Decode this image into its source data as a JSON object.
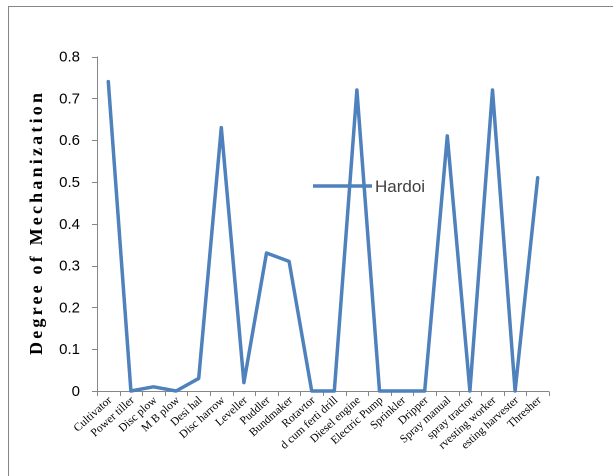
{
  "chart_data": {
    "type": "line",
    "ylabel": "Degree of Mechanization",
    "categories": [
      "Cultivator",
      "Power tiller",
      "Disc plow",
      "M B plow",
      "Desi hal",
      "Disc harrow",
      "Leveller",
      "Puddler",
      "Bundmaker",
      "Rotavtor",
      "d cum ferti drill",
      "Diesel engine",
      "Electric Pump",
      "Sprinkler",
      "Dripper",
      "Spray manual",
      "spray tractor",
      "rvesting worker",
      "esting harvester",
      "Thresher"
    ],
    "series": [
      {
        "name": "Hardoi",
        "color": "#4F81BD",
        "values": [
          0.74,
          0,
          0.01,
          0,
          0.03,
          0.63,
          0.02,
          0.33,
          0.31,
          0,
          0,
          0.72,
          0,
          0,
          0,
          0.61,
          0,
          0.72,
          0,
          0.51
        ]
      }
    ],
    "ylim": [
      0,
      0.8
    ],
    "yticks": [
      0,
      0.1,
      0.2,
      0.3,
      0.4,
      0.5,
      0.6,
      0.7,
      0.8
    ],
    "ytick_labels": [
      "0",
      "0.1",
      "0.2",
      "0.3",
      "0.4",
      "0.5",
      "0.6",
      "0.7",
      "0.8"
    ],
    "grid": false,
    "markers": false,
    "legend": "inside-center"
  },
  "colors": {
    "background": "#FFFFFF",
    "axis": "#868686",
    "border": "#868686",
    "text": "#000000",
    "legend_text": "#404040"
  }
}
